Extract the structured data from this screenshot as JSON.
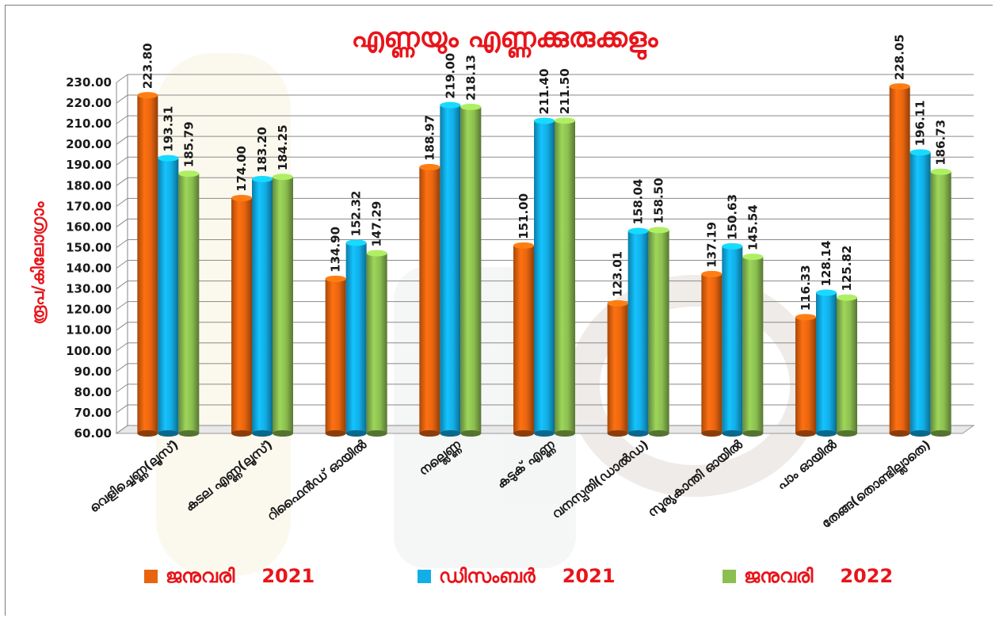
{
  "chart_data": {
    "type": "bar",
    "title": "എണ്ണയും എണ്ണക്കുരുക്കളും",
    "ylabel": "രൂപ/കിലോഗ്രാം",
    "xlabel": "",
    "ylim": [
      60,
      230
    ],
    "ytick_step": 10,
    "grid": true,
    "legend_position": "bottom",
    "categories": [
      "വെളിച്ചെണ്ണ(ലൂസ്)",
      "കടല എണ്ണ(ലൂസ്)",
      "റിഫൈൻഡ് ഓയിൽ",
      "നല്ലെണ്ണ",
      "കടുക് എണ്ണ",
      "വനസ്പതി(ഡാൽഡ)",
      "സൂര്യകാന്തി ഓയിൽ",
      "പാം ഓയിൽ",
      "തേങ്ങ(തൊണ്ടില്ലാതെ)"
    ],
    "series": [
      {
        "name": "ജനുവരി",
        "year": "2021",
        "color": "#e8650f",
        "values": [
          223.8,
          174.0,
          134.9,
          188.97,
          151.0,
          123.01,
          137.19,
          116.33,
          228.05
        ],
        "labels": [
          "223.80",
          "174.00",
          "134.90",
          "188.97",
          "151.00",
          "123.01",
          "137.19",
          "116.33",
          "228.05"
        ]
      },
      {
        "name": "ഡിസംബർ",
        "year": "2021",
        "color": "#12aee6",
        "values": [
          193.31,
          183.2,
          152.32,
          219.0,
          211.4,
          158.04,
          150.63,
          128.14,
          196.11
        ],
        "labels": [
          "193.31",
          "183.20",
          "152.32",
          "219.00",
          "211.40",
          "158.04",
          "150.63",
          "128.14",
          "196.11"
        ]
      },
      {
        "name": "ജനുവരി",
        "year": "2022",
        "color": "#8cbf50",
        "values": [
          185.79,
          184.25,
          147.29,
          218.13,
          211.5,
          158.5,
          145.54,
          125.82,
          186.73
        ],
        "labels": [
          "185.79",
          "184.25",
          "147.29",
          "218.13",
          "211.50",
          "158.50",
          "145.54",
          "125.82",
          "186.73"
        ]
      }
    ],
    "title_color": "#e8141a",
    "ylabel_color": "#e8141a",
    "legend_text_color": "#e8141a"
  }
}
